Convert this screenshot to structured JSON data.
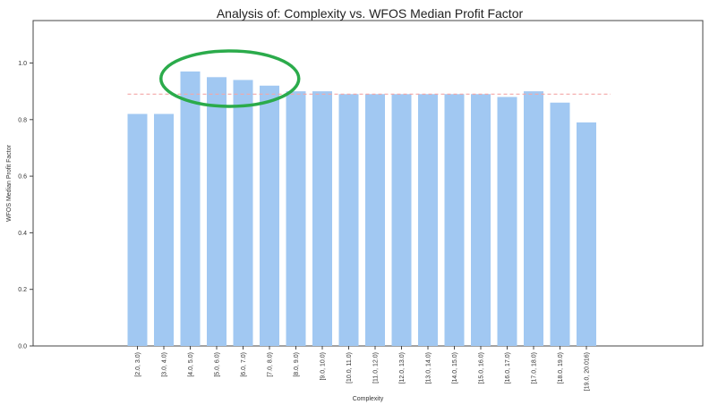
{
  "chart_data": {
    "type": "bar",
    "title": "Analysis of: Complexity vs. WFOS Median Profit Factor",
    "xlabel": "Complexity",
    "ylabel": "WFOS Median Profit Factor",
    "categories": [
      "[2.0, 3.0)",
      "[3.0, 4.0)",
      "[4.0, 5.0)",
      "[5.0, 6.0)",
      "[6.0, 7.0)",
      "[7.0, 8.0)",
      "[8.0, 9.0)",
      "[9.0, 10.0)",
      "[10.0, 11.0)",
      "[11.0, 12.0)",
      "[12.0, 13.0)",
      "[13.0, 14.0)",
      "[14.0, 15.0)",
      "[15.0, 16.0)",
      "[16.0, 17.0)",
      "[17.0, 18.0)",
      "[18.0, 19.0)",
      "[19.0, 20.016)"
    ],
    "values": [
      0.82,
      0.82,
      0.97,
      0.95,
      0.94,
      0.92,
      0.9,
      0.9,
      0.89,
      0.89,
      0.89,
      0.89,
      0.89,
      0.89,
      0.88,
      0.9,
      0.86,
      0.79
    ],
    "ylim": [
      0,
      1.15
    ],
    "yticks": [
      "0.0",
      "0.2",
      "0.4",
      "0.6",
      "0.8",
      "1.0"
    ],
    "reference_line": 0.89,
    "bar_color": "#a1c8f2",
    "reference_line_color": "#f4a6a6",
    "highlight": {
      "shape": "ellipse",
      "color": "#2bab4b",
      "categories": [
        "[4.0, 5.0)",
        "[7.0, 8.0)"
      ]
    },
    "grid": false,
    "legend": "none"
  }
}
